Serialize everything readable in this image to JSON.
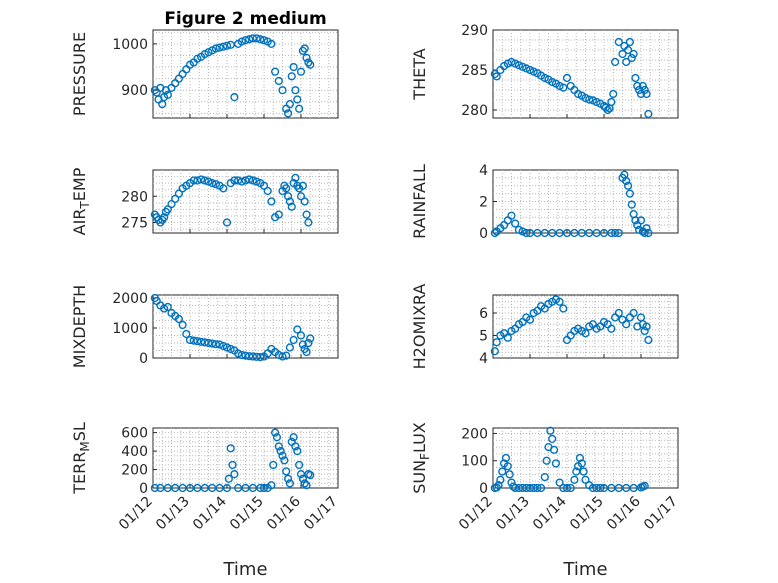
{
  "figure": {
    "title": "Figure 2 medium",
    "marker_color": "#0072bd",
    "x_tick_labels": [
      "01/12",
      "01/13",
      "01/14",
      "01/15",
      "01/16",
      "01/17"
    ],
    "x_axis_label": "Time"
  },
  "chart_data": [
    {
      "type": "scatter",
      "title": "Figure 2 medium",
      "ylabel": "PRESSURE",
      "ylim": [
        840,
        1030
      ],
      "yticks": [
        900,
        1000
      ],
      "xlim": [
        12,
        17
      ],
      "grid": true,
      "x": [
        12.05,
        12.1,
        12.15,
        12.2,
        12.25,
        12.3,
        12.35,
        12.4,
        12.5,
        12.6,
        12.7,
        12.8,
        12.9,
        13,
        13.1,
        13.2,
        13.3,
        13.4,
        13.5,
        13.6,
        13.7,
        13.8,
        13.9,
        14,
        14.1,
        14.2,
        14.3,
        14.4,
        14.5,
        14.6,
        14.7,
        14.8,
        14.9,
        15,
        15.1,
        15.2,
        15.3,
        15.4,
        15.5,
        15.6,
        15.65,
        15.7,
        15.75,
        15.8,
        15.85,
        15.9,
        15.95,
        16,
        16.05,
        16.1,
        16.15,
        16.2,
        16.25
      ],
      "y": [
        900,
        895,
        880,
        905,
        870,
        885,
        900,
        890,
        905,
        915,
        925,
        935,
        945,
        955,
        960,
        968,
        972,
        978,
        982,
        986,
        990,
        992,
        994,
        996,
        998,
        885,
        1000,
        1005,
        1008,
        1010,
        1012,
        1012,
        1010,
        1008,
        1005,
        1000,
        940,
        920,
        900,
        860,
        850,
        870,
        930,
        950,
        900,
        880,
        860,
        940,
        985,
        990,
        970,
        960,
        955
      ]
    },
    {
      "type": "scatter",
      "ylabel": "THETA",
      "ylim": [
        279,
        290
      ],
      "yticks": [
        280,
        285,
        290
      ],
      "xlim": [
        12,
        17
      ],
      "grid": true,
      "x": [
        12.05,
        12.1,
        12.2,
        12.3,
        12.4,
        12.5,
        12.6,
        12.7,
        12.8,
        12.9,
        13,
        13.1,
        13.2,
        13.3,
        13.4,
        13.5,
        13.6,
        13.7,
        13.8,
        13.9,
        14,
        14.1,
        14.2,
        14.3,
        14.4,
        14.5,
        14.6,
        14.7,
        14.8,
        14.9,
        15,
        15.05,
        15.1,
        15.15,
        15.2,
        15.25,
        15.3,
        15.4,
        15.5,
        15.55,
        15.6,
        15.65,
        15.7,
        15.75,
        15.8,
        15.85,
        15.9,
        15.95,
        16,
        16.05,
        16.1,
        16.15,
        16.2
      ],
      "y": [
        284.5,
        284.2,
        285,
        285.5,
        285.8,
        286,
        285.8,
        285.6,
        285.4,
        285.2,
        285,
        284.8,
        284.6,
        284.3,
        284,
        283.8,
        283.5,
        283.3,
        283,
        282.8,
        284,
        283,
        282.5,
        282,
        281.8,
        281.5,
        281.3,
        281.2,
        281,
        280.8,
        280.5,
        280.3,
        280,
        280.2,
        281,
        282,
        286,
        288.5,
        287,
        288,
        286,
        287.5,
        288.5,
        286.5,
        287,
        284,
        283,
        282.5,
        282,
        283,
        282.5,
        282,
        279.5
      ]
    },
    {
      "type": "scatter",
      "ylabel": "AIR_TEMP",
      "ylim": [
        273,
        285
      ],
      "yticks": [
        275,
        280
      ],
      "xlim": [
        12,
        17
      ],
      "grid": true,
      "x": [
        12.05,
        12.1,
        12.15,
        12.2,
        12.25,
        12.3,
        12.35,
        12.4,
        12.5,
        12.6,
        12.7,
        12.8,
        12.9,
        13,
        13.1,
        13.2,
        13.3,
        13.4,
        13.5,
        13.6,
        13.7,
        13.8,
        13.9,
        14,
        14.1,
        14.2,
        14.3,
        14.4,
        14.5,
        14.6,
        14.7,
        14.8,
        14.9,
        15,
        15.1,
        15.2,
        15.3,
        15.4,
        15.5,
        15.55,
        15.6,
        15.65,
        15.7,
        15.75,
        15.8,
        15.85,
        15.9,
        15.95,
        16,
        16.05,
        16.1,
        16.15,
        16.2
      ],
      "y": [
        276.5,
        276,
        275.5,
        275,
        275.5,
        276,
        277,
        277.5,
        278.5,
        279.5,
        280.5,
        281.5,
        282,
        282.5,
        283,
        283,
        283.2,
        283,
        282.8,
        282.5,
        282.3,
        282,
        281.5,
        275,
        282.5,
        283,
        283,
        282.8,
        283,
        283.2,
        283,
        282.8,
        282.5,
        282,
        281,
        279,
        276,
        276.5,
        281,
        282,
        281.5,
        280,
        279,
        278,
        282.5,
        283.5,
        282,
        281.5,
        280,
        282,
        279,
        276.5,
        275
      ]
    },
    {
      "type": "scatter",
      "ylabel": "RAINFALL",
      "ylim": [
        0,
        4
      ],
      "yticks": [
        0,
        2,
        4
      ],
      "xlim": [
        12,
        17
      ],
      "grid": true,
      "x": [
        12.05,
        12.1,
        12.2,
        12.3,
        12.4,
        12.5,
        12.6,
        12.7,
        12.8,
        12.9,
        13,
        13.2,
        13.4,
        13.6,
        13.8,
        14,
        14.2,
        14.4,
        14.6,
        14.8,
        15,
        15.2,
        15.3,
        15.4,
        15.5,
        15.55,
        15.6,
        15.65,
        15.7,
        15.75,
        15.8,
        15.85,
        15.9,
        15.95,
        16,
        16.05,
        16.1,
        16.15,
        16.2
      ],
      "y": [
        0,
        0.1,
        0.3,
        0.5,
        0.8,
        1.1,
        0.6,
        0.2,
        0.1,
        0,
        0,
        0,
        0,
        0,
        0,
        0,
        0,
        0,
        0,
        0,
        0,
        0,
        0,
        0,
        3.5,
        3.7,
        3.3,
        3,
        2.5,
        1.8,
        1.2,
        0.8,
        0.5,
        0.2,
        0.8,
        0.1,
        0,
        0.3,
        0
      ]
    },
    {
      "type": "scatter",
      "ylabel": "MIXDEPTH",
      "ylim": [
        0,
        2100
      ],
      "yticks": [
        0,
        1000,
        2000
      ],
      "xlim": [
        12,
        17
      ],
      "grid": true,
      "x": [
        12.05,
        12.1,
        12.2,
        12.3,
        12.4,
        12.5,
        12.6,
        12.7,
        12.8,
        12.9,
        13,
        13.1,
        13.2,
        13.3,
        13.4,
        13.5,
        13.6,
        13.7,
        13.8,
        13.9,
        14,
        14.1,
        14.2,
        14.3,
        14.4,
        14.5,
        14.6,
        14.7,
        14.8,
        14.9,
        15,
        15.1,
        15.2,
        15.3,
        15.4,
        15.5,
        15.6,
        15.7,
        15.8,
        15.9,
        16,
        16.05,
        16.1,
        16.15,
        16.2,
        16.25
      ],
      "y": [
        2000,
        1900,
        1750,
        1650,
        1700,
        1500,
        1400,
        1300,
        1100,
        800,
        600,
        580,
        560,
        540,
        520,
        500,
        480,
        460,
        450,
        400,
        350,
        300,
        250,
        150,
        100,
        80,
        60,
        50,
        40,
        30,
        50,
        150,
        300,
        200,
        100,
        50,
        80,
        350,
        600,
        950,
        750,
        450,
        300,
        200,
        500,
        650
      ]
    },
    {
      "type": "scatter",
      "ylabel": "H2OMIXRA",
      "ylim": [
        4,
        6.8
      ],
      "yticks": [
        4,
        5,
        6
      ],
      "xlim": [
        12,
        17
      ],
      "grid": true,
      "x": [
        12.05,
        12.1,
        12.2,
        12.3,
        12.4,
        12.5,
        12.6,
        12.7,
        12.8,
        12.9,
        13,
        13.1,
        13.2,
        13.3,
        13.4,
        13.5,
        13.6,
        13.7,
        13.8,
        13.9,
        14,
        14.1,
        14.2,
        14.3,
        14.4,
        14.5,
        14.6,
        14.7,
        14.8,
        14.9,
        15,
        15.1,
        15.2,
        15.3,
        15.4,
        15.5,
        15.6,
        15.7,
        15.8,
        15.9,
        16,
        16.05,
        16.1,
        16.15,
        16.2
      ],
      "y": [
        4.3,
        4.7,
        5,
        5.1,
        4.9,
        5.2,
        5.3,
        5.5,
        5.6,
        5.8,
        5.7,
        6,
        6.1,
        6.3,
        6.2,
        6.4,
        6.5,
        6.6,
        6.5,
        6.2,
        4.8,
        5,
        5.2,
        5.3,
        5.2,
        5.1,
        5.4,
        5.5,
        5.3,
        5.4,
        5.6,
        5.5,
        5.3,
        5.8,
        6,
        5.7,
        5.5,
        5.8,
        6,
        5.4,
        5.8,
        5.5,
        5.2,
        5.4,
        4.8
      ]
    },
    {
      "type": "scatter",
      "ylabel": "TERR_MSL",
      "ylim": [
        0,
        650
      ],
      "yticks": [
        0,
        200,
        400,
        600
      ],
      "xlim": [
        12,
        17
      ],
      "grid": true,
      "x": [
        12.05,
        12.2,
        12.4,
        12.6,
        12.8,
        13,
        13.2,
        13.4,
        13.6,
        13.8,
        14,
        14.05,
        14.1,
        14.15,
        14.2,
        14.3,
        14.5,
        14.7,
        14.9,
        15,
        15.1,
        15.2,
        15.25,
        15.3,
        15.35,
        15.4,
        15.45,
        15.5,
        15.55,
        15.6,
        15.65,
        15.7,
        15.75,
        15.8,
        15.85,
        15.9,
        15.95,
        16,
        16.05,
        16.1,
        16.15,
        16.2,
        16.25
      ],
      "y": [
        0,
        0,
        0,
        0,
        0,
        0,
        0,
        0,
        0,
        0,
        0,
        100,
        430,
        250,
        150,
        0,
        0,
        0,
        0,
        0,
        0,
        30,
        250,
        600,
        550,
        450,
        400,
        350,
        300,
        180,
        100,
        50,
        500,
        550,
        450,
        400,
        250,
        150,
        100,
        50,
        30,
        150,
        140
      ]
    },
    {
      "type": "scatter",
      "ylabel": "SUN_FLUX",
      "ylim": [
        0,
        220
      ],
      "yticks": [
        0,
        100,
        200
      ],
      "xlim": [
        12,
        17
      ],
      "grid": true,
      "x": [
        12.05,
        12.1,
        12.15,
        12.2,
        12.25,
        12.3,
        12.35,
        12.4,
        12.45,
        12.5,
        12.55,
        12.6,
        12.7,
        12.8,
        12.9,
        13,
        13.1,
        13.2,
        13.3,
        13.4,
        13.45,
        13.5,
        13.55,
        13.6,
        13.65,
        13.7,
        13.8,
        13.9,
        14,
        14.1,
        14.2,
        14.25,
        14.3,
        14.35,
        14.4,
        14.45,
        14.5,
        14.6,
        14.7,
        14.8,
        14.9,
        15,
        15.2,
        15.4,
        15.6,
        15.8,
        16,
        16.05,
        16.1
      ],
      "y": [
        0,
        2,
        10,
        30,
        60,
        90,
        110,
        80,
        50,
        20,
        5,
        0,
        0,
        0,
        0,
        0,
        0,
        0,
        0,
        40,
        100,
        150,
        210,
        180,
        140,
        90,
        20,
        0,
        0,
        0,
        30,
        60,
        80,
        110,
        90,
        60,
        30,
        10,
        0,
        0,
        0,
        0,
        0,
        0,
        0,
        0,
        2,
        5,
        8
      ]
    }
  ]
}
